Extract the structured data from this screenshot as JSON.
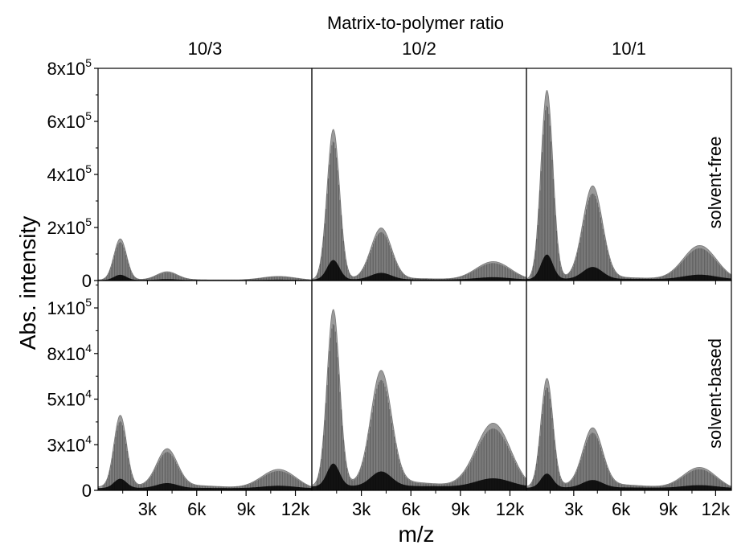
{
  "chart_data": {
    "type": "area",
    "figure_title": "Matrix-to-polymer ratio",
    "xlabel": "m/z",
    "ylabel": "Abs. intensity",
    "columns": [
      "10/3",
      "10/2",
      "10/1"
    ],
    "rows": [
      "solvent-free",
      "solvent-based"
    ],
    "x_range": [
      0,
      13000
    ],
    "x_ticks": [
      3000,
      6000,
      9000,
      12000
    ],
    "x_tick_labels": [
      "3k",
      "6k",
      "9k",
      "12k"
    ],
    "row_axes": [
      {
        "ylim": [
          0,
          800000
        ],
        "ticks": [
          {
            "value": 0,
            "mantissa": "0",
            "exp": ""
          },
          {
            "value": 200000,
            "mantissa": "2x10",
            "exp": "5"
          },
          {
            "value": 400000,
            "mantissa": "4x10",
            "exp": "5"
          },
          {
            "value": 600000,
            "mantissa": "6x10",
            "exp": "5"
          },
          {
            "value": 800000,
            "mantissa": "8x10",
            "exp": "5"
          }
        ]
      },
      {
        "ylim": [
          0,
          115000
        ],
        "ticks": [
          {
            "value": 0,
            "mantissa": "0",
            "exp": ""
          },
          {
            "value": 25000,
            "mantissa": "3x10",
            "exp": "4"
          },
          {
            "value": 50000,
            "mantissa": "5x10",
            "exp": "4"
          },
          {
            "value": 75000,
            "mantissa": "8x10",
            "exp": "4"
          },
          {
            "value": 100000,
            "mantissa": "1x10",
            "exp": "5"
          }
        ]
      }
    ],
    "panels": [
      {
        "row": 0,
        "col": 0,
        "baseline": 3000,
        "peaks": [
          {
            "x": 1350,
            "height": 155000
          },
          {
            "x": 4200,
            "height": 30000
          },
          {
            "x": 11000,
            "height": 15000
          }
        ]
      },
      {
        "row": 0,
        "col": 1,
        "baseline": 8000,
        "peaks": [
          {
            "x": 1300,
            "height": 565000
          },
          {
            "x": 4200,
            "height": 190000
          },
          {
            "x": 11000,
            "height": 70000
          }
        ]
      },
      {
        "row": 0,
        "col": 2,
        "baseline": 12000,
        "peaks": [
          {
            "x": 1300,
            "height": 710000
          },
          {
            "x": 4200,
            "height": 345000
          },
          {
            "x": 11000,
            "height": 130000
          }
        ]
      },
      {
        "row": 1,
        "col": 0,
        "baseline": 2500,
        "peaks": [
          {
            "x": 1350,
            "height": 39000
          },
          {
            "x": 4200,
            "height": 20000
          },
          {
            "x": 11000,
            "height": 11000
          }
        ]
      },
      {
        "row": 1,
        "col": 1,
        "baseline": 4500,
        "peaks": [
          {
            "x": 1300,
            "height": 96000
          },
          {
            "x": 4200,
            "height": 61000
          },
          {
            "x": 11000,
            "height": 36000
          }
        ]
      },
      {
        "row": 1,
        "col": 2,
        "baseline": 3000,
        "peaks": [
          {
            "x": 1300,
            "height": 59000
          },
          {
            "x": 4200,
            "height": 31000
          },
          {
            "x": 11000,
            "height": 12000
          }
        ]
      }
    ],
    "colors": {
      "envelope": "#9a9a9a",
      "lines": "#2a2a2a",
      "inner": "#000000",
      "frame": "#000000"
    }
  }
}
